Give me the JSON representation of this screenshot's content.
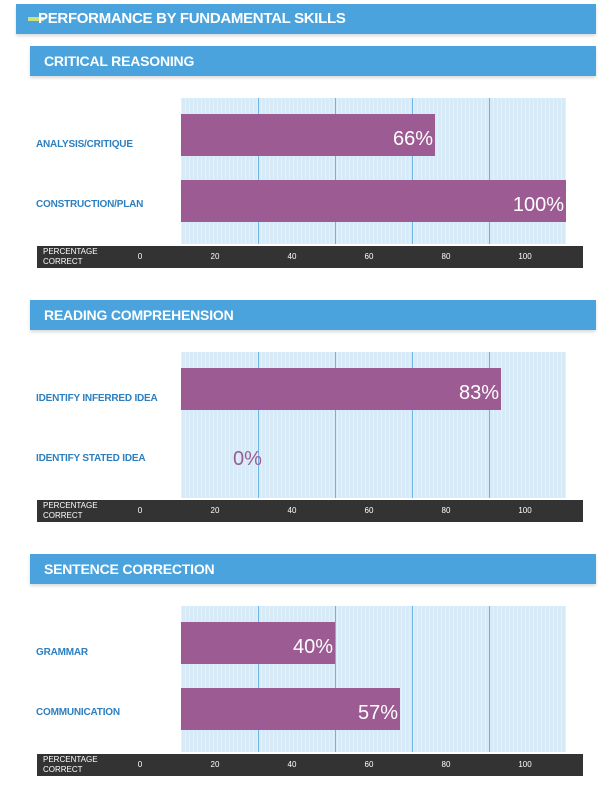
{
  "page_title": "PERFORMANCE BY FUNDAMENTAL SKILLS",
  "axis": {
    "label_line1": "PERCENTAGE",
    "label_line2": "CORRECT",
    "ticks": [
      "0",
      "20",
      "40",
      "60",
      "80",
      "100"
    ]
  },
  "chart_data": [
    {
      "type": "bar",
      "orientation": "horizontal",
      "title": "CRITICAL REASONING",
      "categories": [
        "ANALYSIS/CRITIQUE",
        "CONSTRUCTION/PLAN"
      ],
      "values": [
        66,
        100
      ],
      "labels": [
        "66%",
        "100%"
      ],
      "xlabel": "PERCENTAGE CORRECT",
      "xlim": [
        0,
        100
      ]
    },
    {
      "type": "bar",
      "orientation": "horizontal",
      "title": "READING COMPREHENSION",
      "categories": [
        "IDENTIFY INFERRED IDEA",
        "IDENTIFY STATED IDEA"
      ],
      "values": [
        83,
        0
      ],
      "labels": [
        "83%",
        "0%"
      ],
      "xlabel": "PERCENTAGE CORRECT",
      "xlim": [
        0,
        100
      ]
    },
    {
      "type": "bar",
      "orientation": "horizontal",
      "title": "SENTENCE CORRECTION",
      "categories": [
        "GRAMMAR",
        "COMMUNICATION"
      ],
      "values": [
        40,
        57
      ],
      "labels": [
        "40%",
        "57%"
      ],
      "xlabel": "PERCENTAGE CORRECT",
      "xlim": [
        0,
        100
      ]
    }
  ],
  "colors": {
    "header": "#4aa3dd",
    "bar": "#9c5c93",
    "plot_bg": "#d6eaf7",
    "label": "#2d7fc0",
    "axis_bar": "#333333"
  }
}
